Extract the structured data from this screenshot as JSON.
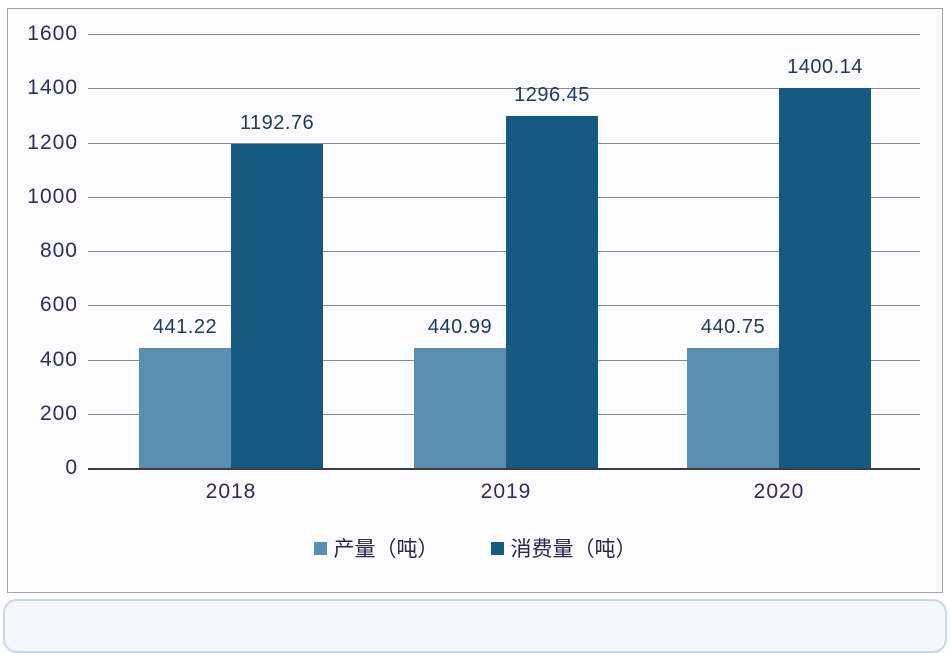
{
  "chart_data": {
    "type": "bar",
    "categories": [
      "2018",
      "2019",
      "2020"
    ],
    "series": [
      {
        "name": "产量（吨）",
        "color": "#5a8fb1",
        "values": [
          441.22,
          440.99,
          440.75
        ]
      },
      {
        "name": "消费量（吨）",
        "color": "#155a80",
        "values": [
          1192.76,
          1296.45,
          1400.14
        ]
      }
    ],
    "title": "",
    "xlabel": "",
    "ylabel": "",
    "ylim": [
      0,
      1600
    ],
    "ytick_step": 200,
    "yticks": [
      "0",
      "200",
      "400",
      "600",
      "800",
      "1000",
      "1200",
      "1400",
      "1600"
    ],
    "grid": true,
    "legend_position": "bottom",
    "value_label_decimals": 2
  },
  "colors": {
    "bar_production": "#5a8fb1",
    "bar_consumption": "#155a80",
    "tick_text": "#2e2b66",
    "value_label_text": "#1f3864",
    "gridline": "#8b8b8b",
    "axis_line": "#3c3c3c",
    "frame_border": "#a2a2aa",
    "frame_background": "#fcfcfe"
  }
}
